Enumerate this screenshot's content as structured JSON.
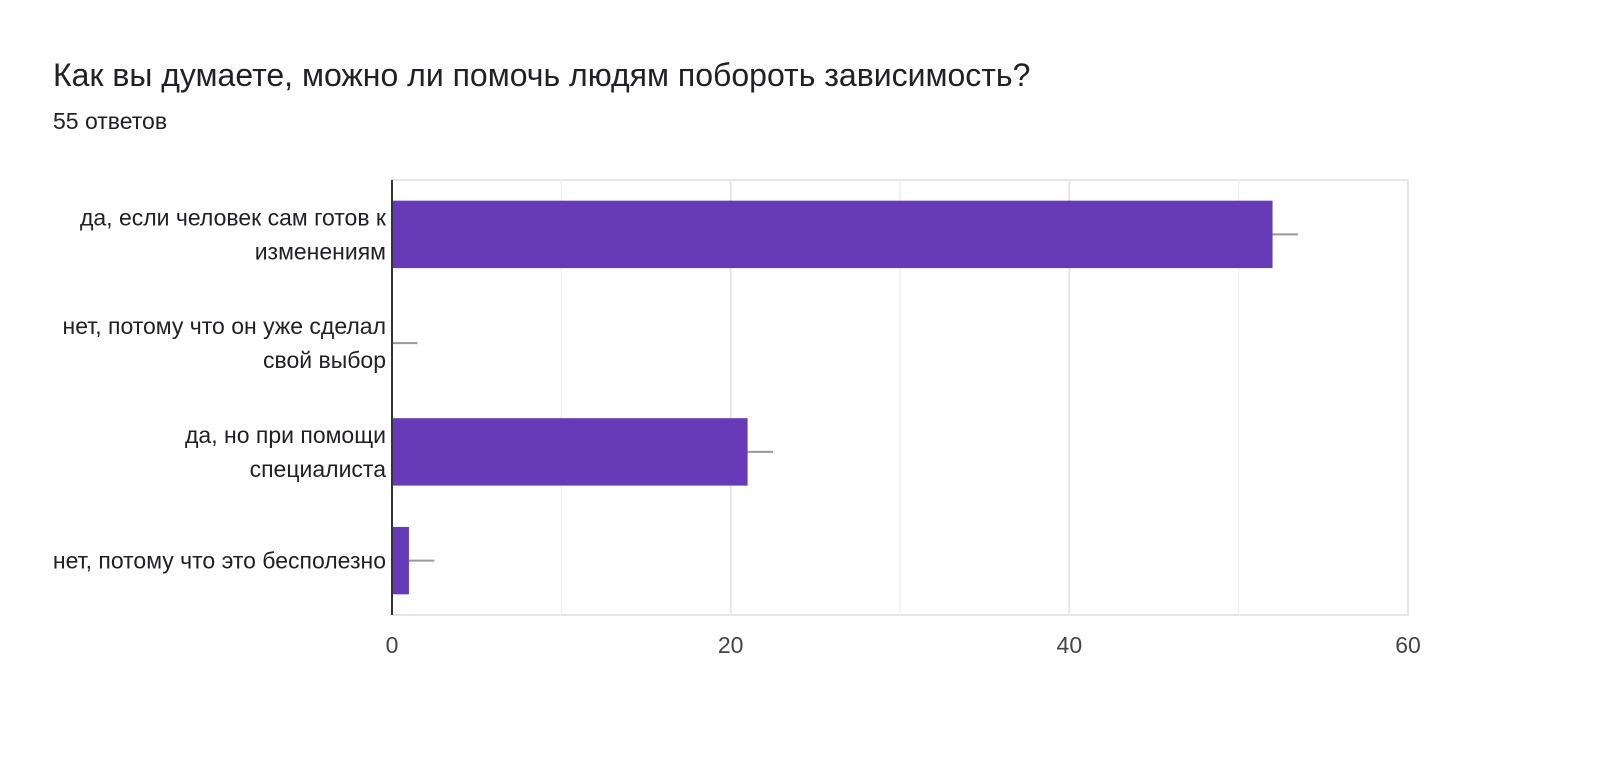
{
  "header": {
    "title": "Как вы думаете, можно ли помочь людям побороть зависимость?",
    "subtitle": "55 ответов"
  },
  "colors": {
    "bar": "#673ab7",
    "grid": "#e6e6e6",
    "axis": "#333333",
    "error_bar": "#999999"
  },
  "chart_data": {
    "type": "bar",
    "orientation": "horizontal",
    "title": "Как вы думаете, можно ли помочь людям побороть зависимость?",
    "subtitle": "55 ответов",
    "categories": [
      [
        "да, если человек сам готов к",
        "изменениям"
      ],
      [
        "нет, потому что он уже сделал",
        "свой выбор"
      ],
      [
        "да, но при помощи",
        "специалиста"
      ],
      [
        "нет, потому что это бесполезно"
      ]
    ],
    "values": [
      52,
      0,
      21,
      1
    ],
    "error": [
      1.5,
      1.5,
      1.5,
      1.5
    ],
    "xlim": [
      0,
      60
    ],
    "xticks": [
      0,
      20,
      40,
      60
    ],
    "minor_gridlines": [
      10,
      30,
      50
    ],
    "grid": true,
    "xlabel": "",
    "ylabel": ""
  }
}
